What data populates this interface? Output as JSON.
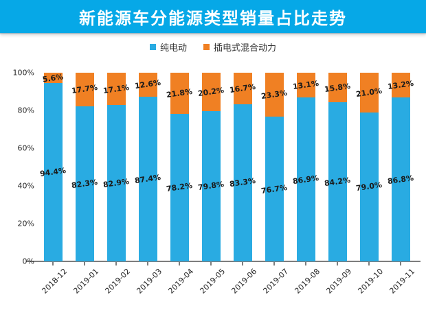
{
  "banner": {
    "title": "新能源车分能源类型销量占比走势",
    "bg_color": "#06A8E7",
    "text_color": "#ffffff"
  },
  "legend": {
    "items": [
      {
        "label": "纯电动",
        "color": "#29ABE2"
      },
      {
        "label": "插电式混合动力",
        "color": "#F08023"
      }
    ]
  },
  "chart_data": {
    "type": "bar",
    "stacked": true,
    "title": "新能源车分能源类型销量占比走势",
    "categories": [
      "2018-12",
      "2019-01",
      "2019-02",
      "2019-03",
      "2019-04",
      "2019-05",
      "2019-06",
      "2019-07",
      "2019-08",
      "2019-09",
      "2019-10",
      "2019-11"
    ],
    "series": [
      {
        "name": "纯电动",
        "color": "#29ABE2",
        "values": [
          94.4,
          82.3,
          82.9,
          87.4,
          78.2,
          79.8,
          83.3,
          76.7,
          86.9,
          84.2,
          79.0,
          86.8
        ]
      },
      {
        "name": "插电式混合动力",
        "color": "#F08023",
        "values": [
          5.6,
          17.7,
          17.1,
          12.6,
          21.8,
          20.2,
          16.7,
          23.3,
          13.1,
          15.8,
          21.0,
          13.2
        ]
      }
    ],
    "xlabel": "",
    "ylabel": "",
    "ylim": [
      0,
      100
    ],
    "yticks": [
      0,
      20,
      40,
      60,
      80,
      100
    ],
    "ytick_labels": [
      "0%",
      "20%",
      "40%",
      "60%",
      "80%",
      "100%"
    ],
    "grid": false,
    "legend_position": "top",
    "value_suffix": "%",
    "axis_color": "#7d7d7d",
    "label_color": "#1a1a1a"
  }
}
